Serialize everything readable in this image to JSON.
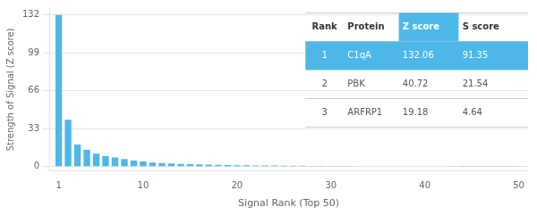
{
  "chart_data": {
    "type": "bar",
    "xlabel": "Signal Rank (Top 50)",
    "ylabel": "Strength of Signal (Z score)",
    "x": [
      1,
      2,
      3,
      4,
      5,
      6,
      7,
      8,
      9,
      10,
      11,
      12,
      13,
      14,
      15,
      16,
      17,
      18,
      19,
      20,
      21,
      22,
      23,
      24,
      25,
      26,
      27,
      28,
      29,
      30,
      31,
      32,
      33,
      34,
      35,
      36,
      37,
      38,
      39,
      40,
      41,
      42,
      43,
      44,
      45,
      46,
      47,
      48,
      49,
      50
    ],
    "values": [
      132.06,
      40.72,
      19.18,
      14.5,
      11.2,
      9.1,
      7.8,
      6.5,
      5.2,
      4.3,
      3.5,
      3.0,
      2.6,
      2.3,
      2.0,
      1.8,
      1.6,
      1.4,
      1.2,
      1.1,
      1.0,
      0.9,
      0.85,
      0.8,
      0.75,
      0.7,
      0.65,
      0.6,
      0.55,
      0.5,
      0.45,
      0.42,
      0.4,
      0.38,
      0.35,
      0.33,
      0.31,
      0.29,
      0.27,
      0.25,
      0.23,
      0.22,
      0.21,
      0.2,
      0.19,
      0.18,
      0.17,
      0.16,
      0.15,
      0.14
    ],
    "color": "#4db8e8",
    "xlim": [
      0.0,
      51
    ],
    "ylim": [
      -4,
      138
    ],
    "xticks": [
      1,
      10,
      20,
      30,
      40,
      50
    ],
    "yticks": [
      0,
      33,
      66,
      99,
      132
    ],
    "grid": "y",
    "table": {
      "rows": [
        [
          "Rank",
          "Protein",
          "Z score",
          "S score"
        ],
        [
          "1",
          "C1qA",
          "132.06",
          "91.35"
        ],
        [
          "2",
          "PBK",
          "40.72",
          "21.54"
        ],
        [
          "3",
          "ARFRP1",
          "19.18",
          "4.64"
        ]
      ],
      "highlight_row": 1,
      "highlight_column": 2,
      "color": "#4db8e8"
    }
  }
}
